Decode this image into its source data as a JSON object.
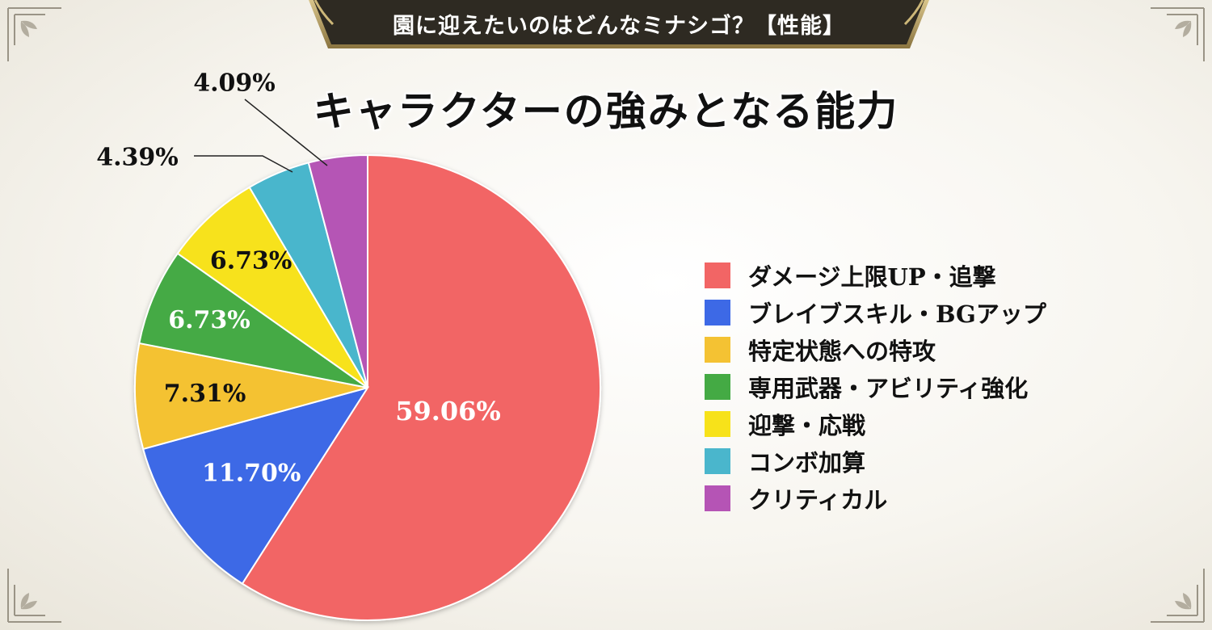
{
  "banner": {
    "title": "園に迎えたいのはどんなミナシゴ？【性能】"
  },
  "chart_data": {
    "type": "pie",
    "title": "キャラクターの強みとなる能力",
    "slices": [
      {
        "label": "ダメージ上限UP・追撃",
        "value": 59.06,
        "display": "59.06%",
        "color": "#f26565",
        "text_color": "#ffffff"
      },
      {
        "label": "ブレイブスキル・BGアップ",
        "value": 11.7,
        "display": "11.70%",
        "color": "#3d69e6",
        "text_color": "#ffffff"
      },
      {
        "label": "特定状態への特攻",
        "value": 7.31,
        "display": "7.31%",
        "color": "#f4c233",
        "text_color": "#111111"
      },
      {
        "label": "専用武器・アビリティ強化",
        "value": 6.73,
        "display": "6.73%",
        "color": "#44aa44",
        "text_color": "#ffffff"
      },
      {
        "label": "迎撃・応戦",
        "value": 6.73,
        "display": "6.73%",
        "color": "#f7e21a",
        "text_color": "#111111"
      },
      {
        "label": "コンボ加算",
        "value": 4.39,
        "display": "4.39%",
        "color": "#4ab6cc",
        "text_color": "#111111"
      },
      {
        "label": "クリティカル",
        "value": 4.09,
        "display": "4.09%",
        "color": "#b554b5",
        "text_color": "#111111"
      }
    ],
    "start": "12 o'clock",
    "direction": "clockwise",
    "legend_position": "right"
  }
}
